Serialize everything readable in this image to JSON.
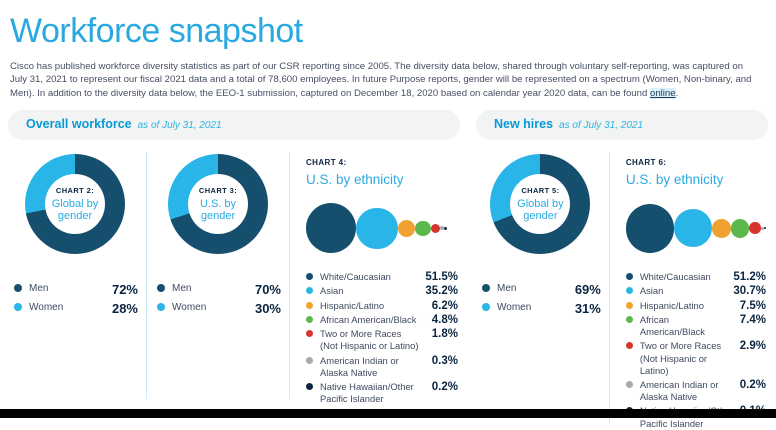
{
  "page": {
    "title": "Workforce snapshot",
    "intro_text": "Cisco has published workforce diversity statistics as part of our CSR reporting since 2005. The diversity data below, shared through voluntary self-reporting, was captured on July 31, 2021 to represent our fiscal 2021 data and a total of 78,600 employees. In future Purpose reports, gender will be represented on a spectrum (Women, Non-binary, and Men). In addition to the diversity data below, the EEO-1 submission, captured on December 18, 2020 based on calendar year 2020 data, can be found ",
    "link_text": "online",
    "intro_period": "."
  },
  "theme": {
    "accent_blue": "#29a9e0",
    "dark_navy": "#164f6e",
    "value_navy": "#0b2540",
    "pill_bg": "#f2f3f3",
    "divider_blue": "#cde9f6"
  },
  "sections": [
    {
      "title": "Overall workforce",
      "date": "as of July 31, 2021"
    },
    {
      "title": "New hires",
      "date": "as of July 31, 2021"
    }
  ],
  "chart_data": [
    {
      "id": "chart-2",
      "type": "pie",
      "section": "Overall workforce",
      "label": "CHART 2:",
      "title": "Global by gender",
      "categories": [
        "Men",
        "Women"
      ],
      "values": [
        72,
        28
      ],
      "display_values": [
        "72%",
        "28%"
      ],
      "colors": [
        "#164f6e",
        "#29b5e8"
      ]
    },
    {
      "id": "chart-3",
      "type": "pie",
      "section": "Overall workforce",
      "label": "CHART 3:",
      "title": "U.S. by gender",
      "categories": [
        "Men",
        "Women"
      ],
      "values": [
        70,
        30
      ],
      "display_values": [
        "70%",
        "30%"
      ],
      "colors": [
        "#164f6e",
        "#29b5e8"
      ]
    },
    {
      "id": "chart-4",
      "type": "bubble",
      "section": "Overall workforce",
      "label": "CHART 4:",
      "title": "U.S. by ethnicity",
      "categories": [
        "White/Caucasian",
        "Asian",
        "Hispanic/Latino",
        "African American/Black",
        "Two or More Races (Not Hispanic or Latino)",
        "American Indian or Alaska Native",
        "Native Hawaiian/Other Pacific Islander"
      ],
      "values": [
        51.5,
        35.2,
        6.2,
        4.8,
        1.8,
        0.3,
        0.2
      ],
      "legend": [
        {
          "label": "White/Caucasian",
          "value": "51.5%"
        },
        {
          "label": "Asian",
          "value": "35.2%"
        },
        {
          "label": "Hispanic/Latino",
          "value": "6.2%"
        },
        {
          "label": "African American/Black",
          "value": "4.8%"
        },
        {
          "label": "Two or More Races",
          "label2": "(Not Hispanic or Latino)",
          "value": "1.8%"
        },
        {
          "label": "American Indian or",
          "label2": "Alaska Native",
          "value": "0.3%"
        },
        {
          "label": "Native Hawaiian/Other",
          "label2": "Pacific Islander",
          "value": "0.2%"
        }
      ],
      "colors": [
        "#164f6e",
        "#29b5e8",
        "#efa22f",
        "#5cb84c",
        "#d6352c",
        "#a9a9a9",
        "#0b2540"
      ]
    },
    {
      "id": "chart-5",
      "type": "pie",
      "section": "New hires",
      "label": "CHART 5:",
      "title": "Global by gender",
      "categories": [
        "Men",
        "Women"
      ],
      "values": [
        69,
        31
      ],
      "display_values": [
        "69%",
        "31%"
      ],
      "colors": [
        "#164f6e",
        "#29b5e8"
      ]
    },
    {
      "id": "chart-6",
      "type": "bubble",
      "section": "New hires",
      "label": "CHART 6:",
      "title": "U.S. by ethnicity",
      "categories": [
        "White/Caucasian",
        "Asian",
        "Hispanic/Latino",
        "African American/Black",
        "Two or More Races (Not Hispanic or Latino)",
        "American Indian or Alaska Native",
        "Native Hawaiian/Other Pacific Islander"
      ],
      "values": [
        51.2,
        30.7,
        7.5,
        7.4,
        2.9,
        0.2,
        0.1
      ],
      "legend": [
        {
          "label": "White/Caucasian",
          "value": "51.2%"
        },
        {
          "label": "Asian",
          "value": "30.7%"
        },
        {
          "label": "Hispanic/Latino",
          "value": "7.5%"
        },
        {
          "label": "African American/Black",
          "value": "7.4%"
        },
        {
          "label": "Two or More Races",
          "label2": "(Not Hispanic or Latino)",
          "value": "2.9%"
        },
        {
          "label": "American Indian or",
          "label2": "Alaska Native",
          "value": "0.2%"
        },
        {
          "label": "Native Hawaiian/Other",
          "label2": "Pacific Islander",
          "value": "0.1%"
        }
      ],
      "colors": [
        "#164f6e",
        "#29b5e8",
        "#efa22f",
        "#5cb84c",
        "#d6352c",
        "#a9a9a9",
        "#0b2540"
      ]
    }
  ]
}
